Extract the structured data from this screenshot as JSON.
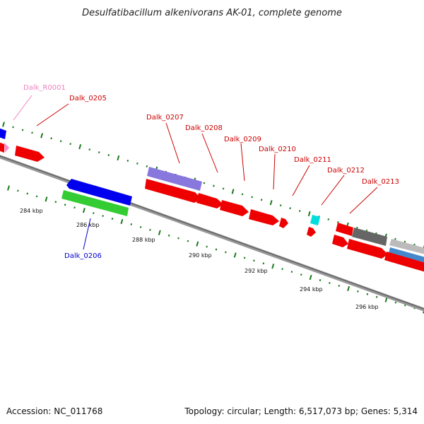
{
  "title": "Desulfatibacillum alkenivorans AK-01, complete genome",
  "footer": {
    "accession": "Accession: NC_011768",
    "summary": "Topology: circular; Length: 6,517,073 bp; Genes: 5,314"
  },
  "axis": {
    "tick_labels": [
      "284 kbp",
      "286 kbp",
      "288 kbp",
      "290 kbp",
      "292 kbp",
      "294 kbp",
      "296 kbp"
    ]
  },
  "gene_labels": [
    {
      "id": "R0001",
      "text": "Dalk_R0001",
      "color": "#f080c0"
    },
    {
      "id": "0205",
      "text": "Dalk_0205",
      "color": "#cc0000"
    },
    {
      "id": "0206",
      "text": "Dalk_0206",
      "color": "#0000cc"
    },
    {
      "id": "0207",
      "text": "Dalk_0207",
      "color": "#cc0000"
    },
    {
      "id": "0208",
      "text": "Dalk_0208",
      "color": "#cc0000"
    },
    {
      "id": "0209",
      "text": "Dalk_0209",
      "color": "#cc0000"
    },
    {
      "id": "0210",
      "text": "Dalk_0210",
      "color": "#cc0000"
    },
    {
      "id": "0211",
      "text": "Dalk_0211",
      "color": "#cc0000"
    },
    {
      "id": "0212",
      "text": "Dalk_0212",
      "color": "#cc0000"
    },
    {
      "id": "0213",
      "text": "Dalk_0213",
      "color": "#cc0000"
    }
  ],
  "colors": {
    "backbone": "#888888",
    "tick": "#1a7a1a",
    "cds": "#ee0000",
    "cds_alt_blue": "#0000ee",
    "gene_green": "#33cc33",
    "gene_purple": "#8877dd",
    "gene_cyan": "#00dddd",
    "gene_dark": "#666666",
    "gene_light": "#bbbbbb",
    "gene_steel": "#4488cc",
    "rna_pink": "#ff88cc"
  }
}
